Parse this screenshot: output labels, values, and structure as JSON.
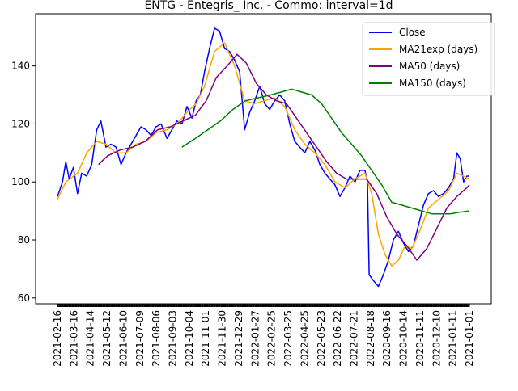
{
  "chart_data": {
    "type": "line",
    "title": "ENTG - Entegris_ Inc. - Commo: interval=1d",
    "xlabel": "",
    "ylabel": "",
    "ylim": [
      58,
      158
    ],
    "yticks": [
      60,
      80,
      100,
      120,
      140
    ],
    "grid": false,
    "legend_position": "top-right",
    "colors": {
      "Close": "#0000ff",
      "MA21exp (days)": "#ffa500",
      "MA50 (days)": "#800080",
      "MA150 (days)": "#008000"
    },
    "x_tick_labels": [
      "2021-02-16",
      "2021-03-16",
      "2021-04-14",
      "2021-05-12",
      "2021-06-10",
      "2021-07-09",
      "2021-08-06",
      "2021-09-03",
      "2021-10-04",
      "2021-11-01",
      "2021-11-30",
      "2021-12-29",
      "2022-01-27",
      "2022-02-25",
      "2022-03-25",
      "2022-04-25",
      "2022-05-23",
      "2022-06-22",
      "2022-07-21",
      "2022-08-18",
      "2020-09-16",
      "2020-10-14",
      "2020-11-11",
      "2020-12-10",
      "2021-01-11",
      "2021-01-01"
    ],
    "n_points": 494,
    "series": [
      {
        "name": "Close",
        "values": [
          [
            0,
            95
          ],
          [
            6,
            100
          ],
          [
            10,
            107
          ],
          [
            14,
            101
          ],
          [
            19,
            105
          ],
          [
            24,
            96
          ],
          [
            29,
            103
          ],
          [
            35,
            102
          ],
          [
            41,
            106
          ],
          [
            47,
            118
          ],
          [
            52,
            121
          ],
          [
            58,
            112
          ],
          [
            64,
            113
          ],
          [
            70,
            112
          ],
          [
            76,
            106
          ],
          [
            82,
            110
          ],
          [
            88,
            113
          ],
          [
            94,
            116
          ],
          [
            100,
            119
          ],
          [
            106,
            118
          ],
          [
            112,
            116
          ],
          [
            118,
            119
          ],
          [
            124,
            120
          ],
          [
            131,
            115
          ],
          [
            137,
            118
          ],
          [
            143,
            121
          ],
          [
            149,
            120
          ],
          [
            155,
            126
          ],
          [
            161,
            122
          ],
          [
            166,
            128
          ],
          [
            171,
            130
          ],
          [
            176,
            138
          ],
          [
            182,
            146
          ],
          [
            188,
            153
          ],
          [
            194,
            152
          ],
          [
            200,
            146
          ],
          [
            206,
            145
          ],
          [
            212,
            142
          ],
          [
            218,
            138
          ],
          [
            224,
            118
          ],
          [
            230,
            124
          ],
          [
            236,
            128
          ],
          [
            242,
            133
          ],
          [
            248,
            127
          ],
          [
            254,
            125
          ],
          [
            260,
            128
          ],
          [
            266,
            130
          ],
          [
            272,
            128
          ],
          [
            278,
            120
          ],
          [
            284,
            114
          ],
          [
            290,
            112
          ],
          [
            296,
            110
          ],
          [
            302,
            114
          ],
          [
            308,
            111
          ],
          [
            314,
            106
          ],
          [
            320,
            103
          ],
          [
            326,
            101
          ],
          [
            332,
            99
          ],
          [
            338,
            95
          ],
          [
            344,
            98
          ],
          [
            350,
            102
          ],
          [
            356,
            100
          ],
          [
            362,
            104
          ],
          [
            368,
            104
          ],
          [
            371,
            100
          ],
          [
            373,
            68
          ],
          [
            378,
            66
          ],
          [
            384,
            64
          ],
          [
            390,
            68
          ],
          [
            396,
            73
          ],
          [
            402,
            80
          ],
          [
            408,
            83
          ],
          [
            414,
            79
          ],
          [
            420,
            76
          ],
          [
            426,
            78
          ],
          [
            432,
            85
          ],
          [
            438,
            92
          ],
          [
            444,
            96
          ],
          [
            450,
            97
          ],
          [
            456,
            95
          ],
          [
            462,
            96
          ],
          [
            468,
            98
          ],
          [
            474,
            101
          ],
          [
            478,
            110
          ],
          [
            482,
            108
          ],
          [
            486,
            100
          ],
          [
            490,
            102
          ],
          [
            493,
            102
          ]
        ]
      },
      {
        "name": "MA21exp (days)",
        "values": [
          [
            0,
            94
          ],
          [
            10,
            100
          ],
          [
            24,
            103
          ],
          [
            35,
            110
          ],
          [
            47,
            114
          ],
          [
            58,
            113
          ],
          [
            70,
            110
          ],
          [
            82,
            110
          ],
          [
            94,
            113
          ],
          [
            106,
            114
          ],
          [
            118,
            117
          ],
          [
            131,
            118
          ],
          [
            143,
            120
          ],
          [
            155,
            124
          ],
          [
            166,
            127
          ],
          [
            176,
            133
          ],
          [
            188,
            145
          ],
          [
            200,
            148
          ],
          [
            212,
            140
          ],
          [
            224,
            128
          ],
          [
            236,
            127
          ],
          [
            248,
            128
          ],
          [
            260,
            129
          ],
          [
            272,
            126
          ],
          [
            284,
            118
          ],
          [
            296,
            113
          ],
          [
            308,
            110
          ],
          [
            320,
            106
          ],
          [
            332,
            100
          ],
          [
            344,
            98
          ],
          [
            356,
            101
          ],
          [
            368,
            103
          ],
          [
            376,
            96
          ],
          [
            384,
            82
          ],
          [
            392,
            75
          ],
          [
            400,
            71
          ],
          [
            408,
            73
          ],
          [
            416,
            78
          ],
          [
            424,
            77
          ],
          [
            432,
            82
          ],
          [
            444,
            91
          ],
          [
            456,
            94
          ],
          [
            468,
            97
          ],
          [
            478,
            103
          ],
          [
            486,
            102
          ],
          [
            493,
            101
          ]
        ]
      },
      {
        "name": "MA50 (days)",
        "values": [
          [
            49,
            106
          ],
          [
            60,
            109
          ],
          [
            75,
            111
          ],
          [
            90,
            112
          ],
          [
            105,
            114
          ],
          [
            120,
            118
          ],
          [
            135,
            119
          ],
          [
            150,
            121
          ],
          [
            165,
            123
          ],
          [
            178,
            128
          ],
          [
            190,
            136
          ],
          [
            203,
            140
          ],
          [
            215,
            144
          ],
          [
            226,
            141
          ],
          [
            238,
            134
          ],
          [
            250,
            130
          ],
          [
            262,
            128
          ],
          [
            274,
            127
          ],
          [
            286,
            122
          ],
          [
            298,
            117
          ],
          [
            310,
            112
          ],
          [
            322,
            107
          ],
          [
            334,
            103
          ],
          [
            346,
            101
          ],
          [
            358,
            101
          ],
          [
            370,
            101
          ],
          [
            382,
            96
          ],
          [
            394,
            88
          ],
          [
            406,
            82
          ],
          [
            418,
            78
          ],
          [
            430,
            73
          ],
          [
            442,
            77
          ],
          [
            454,
            84
          ],
          [
            466,
            91
          ],
          [
            478,
            95
          ],
          [
            490,
            98
          ],
          [
            493,
            99
          ]
        ]
      },
      {
        "name": "MA150 (days)",
        "values": [
          [
            149,
            112
          ],
          [
            165,
            115
          ],
          [
            180,
            118
          ],
          [
            195,
            121
          ],
          [
            210,
            125
          ],
          [
            225,
            128
          ],
          [
            240,
            129
          ],
          [
            255,
            130
          ],
          [
            268,
            131
          ],
          [
            280,
            132
          ],
          [
            292,
            131
          ],
          [
            304,
            130
          ],
          [
            316,
            127
          ],
          [
            328,
            122
          ],
          [
            340,
            117
          ],
          [
            352,
            113
          ],
          [
            364,
            109
          ],
          [
            376,
            104
          ],
          [
            388,
            99
          ],
          [
            400,
            93
          ],
          [
            412,
            92
          ],
          [
            424,
            91
          ],
          [
            436,
            90
          ],
          [
            448,
            89
          ],
          [
            460,
            89
          ],
          [
            470,
            89
          ],
          [
            480,
            89.5
          ],
          [
            493,
            90
          ]
        ]
      }
    ]
  }
}
